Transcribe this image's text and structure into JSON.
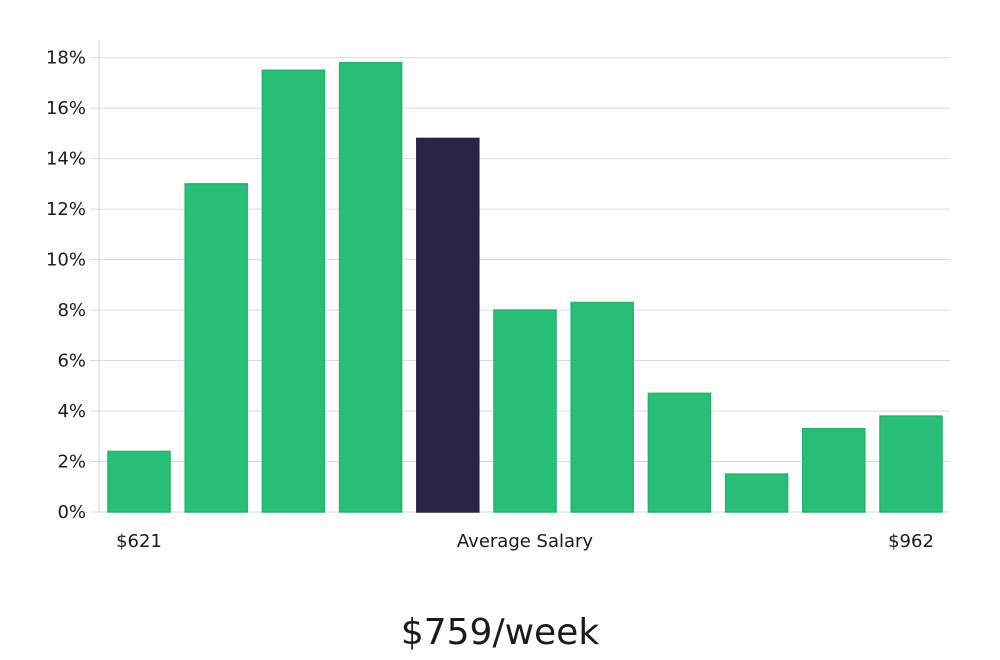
{
  "chart_data": {
    "type": "bar",
    "values": [
      2.4,
      13.0,
      17.5,
      17.8,
      14.8,
      8.0,
      8.3,
      4.7,
      1.5,
      3.3,
      3.8
    ],
    "highlight_index": 4,
    "y_ticks": [
      0,
      2,
      4,
      6,
      8,
      10,
      12,
      14,
      16,
      18
    ],
    "y_tick_suffix": "%",
    "ylim": [
      0,
      18.7
    ],
    "grid": true,
    "x_labels": {
      "left": "$621",
      "center": "Average Salary",
      "right": "$962"
    },
    "colors": {
      "bar": "#2abf78",
      "bar_border": "#22b36d",
      "highlight": "#282546"
    }
  },
  "caption": "$759/week"
}
